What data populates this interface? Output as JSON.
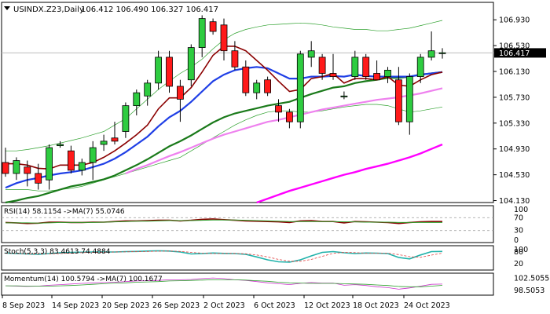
{
  "chart_data": {
    "type": "candlestick",
    "title": "USINDX.Z23,Daily",
    "ohlc_header": "106.412 106.490 106.327 106.417",
    "last_price": 106.417,
    "last_price_label": "106.417",
    "x_tick_labels": [
      "8 Sep 2023",
      "14 Sep 2023",
      "20 Sep 2023",
      "26 Sep 2023",
      "2 Oct 2023",
      "6 Oct 2023",
      "12 Oct 2023",
      "18 Oct 2023",
      "24 Oct 2023"
    ],
    "price_ticks": [
      106.93,
      106.53,
      106.13,
      105.73,
      105.33,
      104.93,
      104.53,
      104.13
    ],
    "price_tick_labels": [
      "106.930",
      "106.530",
      "106.130",
      "105.730",
      "105.330",
      "104.930",
      "104.530",
      "104.130"
    ],
    "ylim": [
      104.1,
      107.2
    ],
    "candles": [
      {
        "o": 104.72,
        "h": 104.95,
        "l": 104.5,
        "c": 104.55
      },
      {
        "o": 104.55,
        "h": 104.8,
        "l": 104.45,
        "c": 104.75
      },
      {
        "o": 104.65,
        "h": 104.75,
        "l": 104.35,
        "c": 104.55
      },
      {
        "o": 104.55,
        "h": 104.7,
        "l": 104.3,
        "c": 104.4
      },
      {
        "o": 104.45,
        "h": 105.0,
        "l": 104.3,
        "c": 104.95
      },
      {
        "o": 104.98,
        "h": 105.05,
        "l": 104.95,
        "c": 105.0
      },
      {
        "o": 104.9,
        "h": 104.98,
        "l": 104.55,
        "c": 104.6
      },
      {
        "o": 104.6,
        "h": 104.78,
        "l": 104.52,
        "c": 104.72
      },
      {
        "o": 104.72,
        "h": 105.05,
        "l": 104.45,
        "c": 104.95
      },
      {
        "o": 105.0,
        "h": 105.15,
        "l": 104.9,
        "c": 105.05
      },
      {
        "o": 105.1,
        "h": 105.35,
        "l": 105.0,
        "c": 105.05
      },
      {
        "o": 105.2,
        "h": 105.65,
        "l": 105.1,
        "c": 105.6
      },
      {
        "o": 105.6,
        "h": 105.85,
        "l": 105.45,
        "c": 105.8
      },
      {
        "o": 105.75,
        "h": 106.0,
        "l": 105.6,
        "c": 105.95
      },
      {
        "o": 105.95,
        "h": 106.45,
        "l": 105.85,
        "c": 106.35
      },
      {
        "o": 106.35,
        "h": 106.45,
        "l": 105.8,
        "c": 105.9
      },
      {
        "o": 105.9,
        "h": 106.0,
        "l": 105.35,
        "c": 105.7
      },
      {
        "o": 106.0,
        "h": 106.55,
        "l": 105.9,
        "c": 106.5
      },
      {
        "o": 106.5,
        "h": 107.0,
        "l": 106.35,
        "c": 106.95
      },
      {
        "o": 106.9,
        "h": 106.95,
        "l": 106.7,
        "c": 106.75
      },
      {
        "o": 106.85,
        "h": 106.95,
        "l": 106.3,
        "c": 106.45
      },
      {
        "o": 106.45,
        "h": 106.6,
        "l": 106.15,
        "c": 106.2
      },
      {
        "o": 106.2,
        "h": 106.3,
        "l": 105.75,
        "c": 105.8
      },
      {
        "o": 105.8,
        "h": 106.0,
        "l": 105.7,
        "c": 105.95
      },
      {
        "o": 106.0,
        "h": 106.05,
        "l": 105.75,
        "c": 105.8
      },
      {
        "o": 105.6,
        "h": 105.7,
        "l": 105.35,
        "c": 105.5
      },
      {
        "o": 105.5,
        "h": 105.55,
        "l": 105.25,
        "c": 105.35
      },
      {
        "o": 105.35,
        "h": 106.45,
        "l": 105.25,
        "c": 106.4
      },
      {
        "o": 106.35,
        "h": 106.6,
        "l": 106.2,
        "c": 106.45
      },
      {
        "o": 106.35,
        "h": 106.4,
        "l": 106.0,
        "c": 106.1
      },
      {
        "o": 106.1,
        "h": 106.4,
        "l": 106.0,
        "c": 106.05
      },
      {
        "o": 105.75,
        "h": 105.82,
        "l": 105.7,
        "c": 105.75
      },
      {
        "o": 106.05,
        "h": 106.45,
        "l": 106.0,
        "c": 106.35
      },
      {
        "o": 106.35,
        "h": 106.4,
        "l": 106.0,
        "c": 106.05
      },
      {
        "o": 106.1,
        "h": 106.3,
        "l": 106.0,
        "c": 106.0
      },
      {
        "o": 106.05,
        "h": 106.2,
        "l": 105.95,
        "c": 106.15
      },
      {
        "o": 106.0,
        "h": 106.2,
        "l": 105.3,
        "c": 105.35
      },
      {
        "o": 105.35,
        "h": 106.1,
        "l": 105.15,
        "c": 106.05
      },
      {
        "o": 106.05,
        "h": 106.4,
        "l": 105.95,
        "c": 106.35
      },
      {
        "o": 106.35,
        "h": 106.75,
        "l": 106.3,
        "c": 106.45
      },
      {
        "o": 106.41,
        "h": 106.49,
        "l": 106.33,
        "c": 106.42
      }
    ],
    "lines": [
      {
        "color": "#2ca02c",
        "width": 0.7,
        "values": [
          104.9,
          104.9,
          104.92,
          104.95,
          104.98,
          105.02,
          105.06,
          105.1,
          105.15,
          105.2,
          105.3,
          105.4,
          105.55,
          105.7,
          105.85,
          105.98,
          106.1,
          106.2,
          106.32,
          106.48,
          106.62,
          106.72,
          106.78,
          106.82,
          106.85,
          106.86,
          106.87,
          106.88,
          106.87,
          106.85,
          106.82,
          106.8,
          106.78,
          106.78,
          106.76,
          106.76,
          106.78,
          106.8,
          106.84,
          106.88,
          106.92
        ]
      },
      {
        "color": "#2ca02c",
        "width": 0.7,
        "values": [
          104.3,
          104.3,
          104.3,
          104.28,
          104.28,
          104.3,
          104.32,
          104.35,
          104.4,
          104.45,
          104.5,
          104.55,
          104.6,
          104.65,
          104.7,
          104.75,
          104.8,
          104.9,
          105.0,
          105.1,
          105.2,
          105.3,
          105.38,
          105.45,
          105.5,
          105.52,
          105.52,
          105.5,
          105.5,
          105.52,
          105.55,
          105.58,
          105.6,
          105.62,
          105.62,
          105.6,
          105.55,
          105.5,
          105.52,
          105.55,
          105.58
        ]
      },
      {
        "color": "#1a7a1a",
        "width": 2.2,
        "values": [
          104.1,
          104.13,
          104.17,
          104.2,
          104.25,
          104.3,
          104.35,
          104.38,
          104.42,
          104.46,
          104.52,
          104.6,
          104.68,
          104.77,
          104.87,
          104.97,
          105.05,
          105.14,
          105.24,
          105.34,
          105.42,
          105.48,
          105.52,
          105.56,
          105.6,
          105.63,
          105.66,
          105.72,
          105.78,
          105.83,
          105.88,
          105.9,
          105.95,
          105.98,
          106.0,
          106.03,
          106.03,
          106.05,
          106.08,
          106.1,
          106.12
        ]
      },
      {
        "color": "#1f3fe6",
        "width": 2.2,
        "values": [
          104.33,
          104.4,
          104.45,
          104.48,
          104.52,
          104.55,
          104.57,
          104.6,
          104.65,
          104.7,
          104.78,
          104.88,
          105.0,
          105.12,
          105.28,
          105.42,
          105.52,
          105.66,
          105.82,
          105.98,
          106.08,
          106.15,
          106.18,
          106.2,
          106.18,
          106.1,
          106.02,
          106.02,
          106.05,
          106.05,
          106.06,
          106.05,
          106.08,
          106.06,
          106.05,
          106.05,
          106.05,
          106.05,
          106.08,
          106.1,
          106.12
        ]
      },
      {
        "color": "#8b0000",
        "width": 1.6,
        "values": [
          104.7,
          104.7,
          104.68,
          104.63,
          104.62,
          104.68,
          104.68,
          104.68,
          104.72,
          104.8,
          104.9,
          105.02,
          105.15,
          105.3,
          105.55,
          105.72,
          105.72,
          105.88,
          106.12,
          106.38,
          106.52,
          106.52,
          106.45,
          106.3,
          106.15,
          105.98,
          105.82,
          105.85,
          106.02,
          106.05,
          106.1,
          105.95,
          106.02,
          106.02,
          106.0,
          106.05,
          105.92,
          105.9,
          106.0,
          106.08,
          106.12
        ]
      },
      {
        "color": "#ee82ee",
        "width": 2.2,
        "values": [
          null,
          null,
          null,
          null,
          null,
          null,
          null,
          null,
          null,
          null,
          null,
          104.55,
          104.62,
          104.68,
          104.75,
          104.82,
          104.88,
          104.95,
          105.02,
          105.09,
          105.15,
          105.2,
          105.25,
          105.3,
          105.35,
          105.38,
          105.42,
          105.46,
          105.5,
          105.54,
          105.57,
          105.6,
          105.63,
          105.66,
          105.69,
          105.71,
          105.73,
          105.76,
          105.79,
          105.83,
          105.87
        ]
      },
      {
        "color": "#ff00ff",
        "width": 2.4,
        "values": [
          null,
          null,
          null,
          null,
          null,
          null,
          null,
          null,
          null,
          null,
          null,
          null,
          null,
          null,
          null,
          null,
          null,
          null,
          null,
          null,
          null,
          null,
          null,
          104.1,
          104.16,
          104.22,
          104.28,
          104.33,
          104.38,
          104.43,
          104.48,
          104.53,
          104.57,
          104.62,
          104.66,
          104.7,
          104.75,
          104.8,
          104.86,
          104.93,
          105.0
        ]
      }
    ],
    "indicators": [
      {
        "title": "RSI(14) 58.1154 ->MA(7) 55.0746",
        "levels": [
          100,
          70,
          30,
          0
        ],
        "level_labels": [
          "100",
          "70",
          "30",
          "0"
        ],
        "range": [
          0,
          100
        ],
        "dashed_levels": [
          70,
          30
        ],
        "series": [
          {
            "color": "#8b0000",
            "width": 1.6,
            "values": [
              55,
              54,
              52,
              53,
              56,
              56,
              55,
              55,
              56,
              56,
              58,
              60,
              60,
              61,
              62,
              62,
              60,
              62,
              65,
              66,
              64,
              62,
              60,
              59,
              58,
              57,
              55,
              60,
              61,
              58,
              58,
              54,
              58,
              57,
              56,
              55,
              52,
              55,
              57,
              58,
              58
            ]
          },
          {
            "color": "#2ca02c",
            "width": 1.0,
            "values": [
              54,
              54,
              54,
              53,
              54,
              55,
              55,
              55,
              55,
              56,
              57,
              58,
              59,
              59,
              60,
              61,
              61,
              61,
              62,
              63,
              63,
              63,
              62,
              61,
              60,
              59,
              58,
              58,
              58,
              58,
              58,
              57,
              57,
              56,
              56,
              56,
              55,
              55,
              55,
              55,
              55
            ]
          }
        ]
      },
      {
        "title": "Stoch(5,3,3) 83.4613 74.4884",
        "levels": [
          100,
          80,
          20
        ],
        "level_labels": [
          "100",
          "80",
          "20"
        ],
        "range": [
          0,
          100
        ],
        "dashed_levels": [],
        "series": [
          {
            "color": "#20b2aa",
            "width": 1.6,
            "values": [
              75,
              72,
              70,
              68,
              72,
              76,
              78,
              79,
              80,
              80,
              80,
              82,
              83,
              85,
              86,
              85,
              80,
              70,
              72,
              75,
              73,
              72,
              68,
              55,
              40,
              30,
              28,
              40,
              60,
              78,
              82,
              76,
              72,
              75,
              74,
              72,
              52,
              45,
              65,
              82,
              83
            ]
          },
          {
            "color": "#e04040",
            "width": 0.8,
            "dash": "3,2",
            "values": [
              74,
              73,
              71,
              70,
              70,
              72,
              75,
              77,
              78,
              79,
              80,
              81,
              82,
              83,
              84,
              85,
              83,
              78,
              74,
              72,
              73,
              73,
              71,
              65,
              55,
              42,
              33,
              33,
              42,
              58,
              73,
              78,
              77,
              74,
              74,
              74,
              67,
              56,
              53,
              64,
              74
            ]
          }
        ]
      },
      {
        "title": "Momentum(14) 100.5794 ->MA(7) 100.1677",
        "levels": [
          102.5055,
          98.5053
        ],
        "level_labels": [
          "102.5055",
          "98.5053"
        ],
        "range": [
          97.7,
          103.4
        ],
        "dashed_levels": [],
        "series": [
          {
            "color": "#cc33cc",
            "width": 0.8,
            "values": [
              100.0,
              99.9,
              99.8,
              99.9,
              100.2,
              100.4,
              100.6,
              100.8,
              101.0,
              101.1,
              101.2,
              101.4,
              101.6,
              101.7,
              101.8,
              102.0,
              102.0,
              102.1,
              102.4,
              102.6,
              102.4,
              102.0,
              101.8,
              101.4,
              101.0,
              100.7,
              100.4,
              100.8,
              101.1,
              100.9,
              100.9,
              100.2,
              100.4,
              100.1,
              99.7,
              99.4,
              98.9,
              99.3,
              99.9,
              100.5,
              100.58
            ]
          },
          {
            "color": "#2ca02c",
            "width": 0.8,
            "values": [
              100.0,
              100.0,
              99.9,
              99.9,
              99.9,
              100.0,
              100.1,
              100.3,
              100.5,
              100.7,
              100.9,
              101.0,
              101.2,
              101.3,
              101.4,
              101.6,
              101.7,
              101.8,
              101.9,
              102.0,
              102.0,
              102.0,
              101.9,
              101.7,
              101.5,
              101.2,
              101.0,
              100.9,
              100.8,
              100.8,
              100.8,
              100.7,
              100.6,
              100.5,
              100.3,
              100.1,
              99.8,
              99.7,
              99.7,
              99.9,
              100.17
            ]
          }
        ]
      }
    ]
  }
}
